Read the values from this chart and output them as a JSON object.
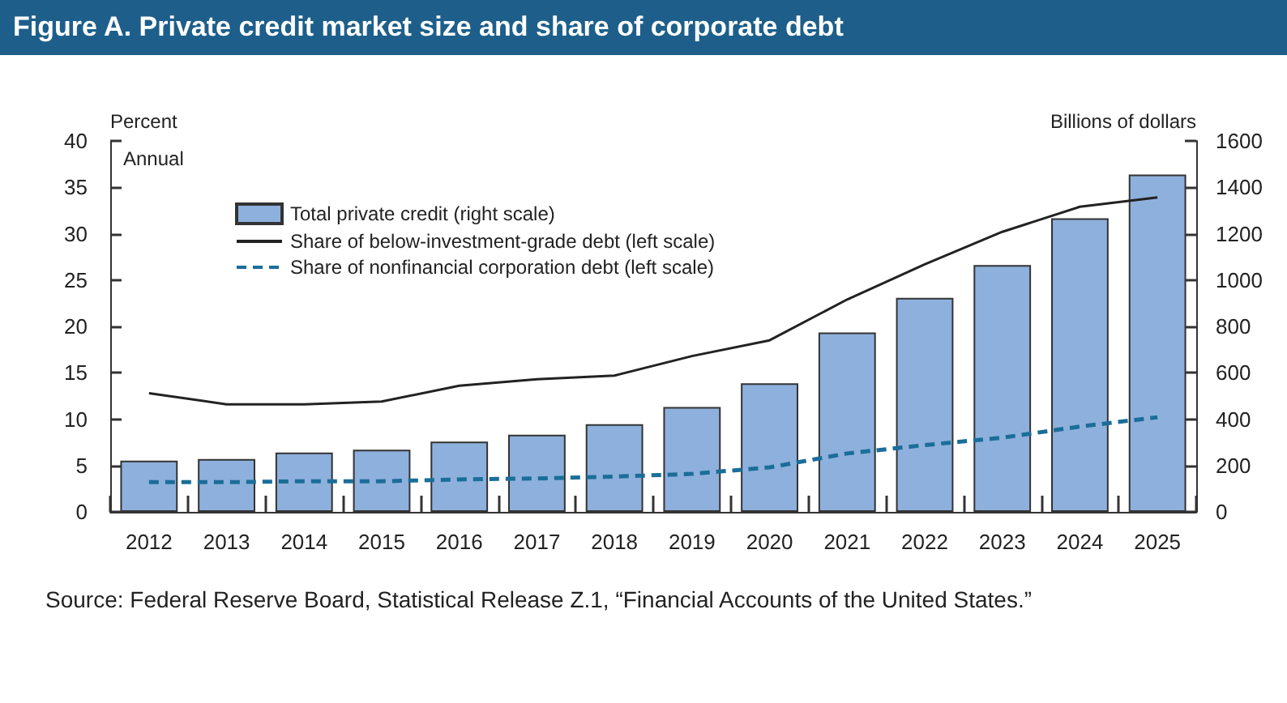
{
  "chart_data": {
    "type": "bar",
    "title": "Figure A. Private credit market size and share of corporate debt",
    "ylabel": "Percent",
    "y2label": "Billions of dollars",
    "categories": [
      "2012",
      "2013",
      "2014",
      "2015",
      "2016",
      "2017",
      "2018",
      "2019",
      "2020",
      "2021",
      "2022",
      "2023",
      "2024",
      "2025"
    ],
    "series": [
      {
        "name": "Total private credit (right scale)",
        "axis": "y2",
        "color": "#8eb0dc",
        "values": [
          221,
          228,
          256,
          268,
          303,
          333,
          378,
          452,
          555,
          774,
          923,
          1065,
          1266,
          1455
        ]
      },
      {
        "name": "Share of below-investment-grade debt (left scale)",
        "type": "line",
        "color": "#222222",
        "line_style": "solid",
        "values": [
          12.8,
          11.6,
          11.6,
          11.9,
          13.6,
          14.3,
          14.7,
          16.8,
          18.5,
          22.9,
          26.7,
          30.2,
          32.9,
          33.9
        ]
      },
      {
        "name": "Share of nonfinancial corporation debt (left scale)",
        "type": "line",
        "color": "#1a6e99",
        "line_style": "dashed",
        "values": [
          3.2,
          3.2,
          3.3,
          3.3,
          3.5,
          3.6,
          3.8,
          4.1,
          4.8,
          6.3,
          7.2,
          8.0,
          9.2,
          10.2
        ]
      }
    ],
    "ylim": [
      0,
      40
    ],
    "yticks": [
      0,
      5,
      10,
      15,
      20,
      25,
      30,
      35,
      40
    ],
    "y2lim": [
      0,
      1600
    ],
    "y2ticks": [
      0,
      200,
      400,
      600,
      800,
      1000,
      1200,
      1400,
      1600
    ],
    "grid": false,
    "legend": "top left",
    "marker": "none",
    "annotations": [
      "Annual",
      "Source: Federal Reserve Board, Statistical Release Z.1, “Financial Accounts of the United States.”"
    ]
  }
}
